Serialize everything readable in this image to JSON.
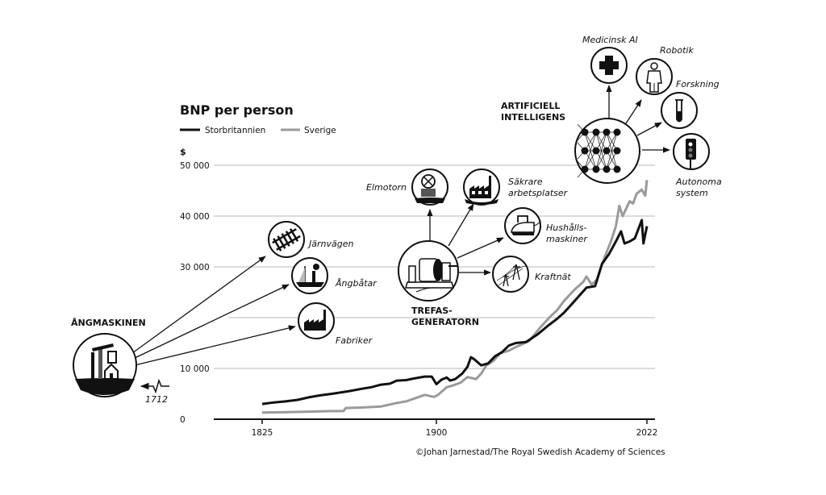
{
  "chart_data": {
    "type": "line",
    "title": "BNP per person",
    "ylabel": "$",
    "ylim": [
      0,
      50000
    ],
    "yticks": [
      {
        "value": 0,
        "label": "0"
      },
      {
        "value": 10000,
        "label": "10 000"
      },
      {
        "value": 20000,
        "label": ""
      },
      {
        "value": 30000,
        "label": "30 000"
      },
      {
        "value": 40000,
        "label": "40 000"
      },
      {
        "value": 50000,
        "label": "50 000"
      }
    ],
    "xticks": [
      {
        "value": 1825,
        "label": "1825"
      },
      {
        "value": 1900,
        "label": "1900"
      },
      {
        "value": 2022,
        "label": "2022"
      }
    ],
    "grid": true,
    "legend_placement": "top-left",
    "series": [
      {
        "name": "Storbritannien",
        "color": "#111111",
        "points": [
          [
            1825,
            3000
          ],
          [
            1830,
            3300
          ],
          [
            1835,
            3500
          ],
          [
            1840,
            3800
          ],
          [
            1845,
            4300
          ],
          [
            1850,
            4700
          ],
          [
            1855,
            5000
          ],
          [
            1862,
            5500
          ],
          [
            1868,
            6000
          ],
          [
            1872,
            6300
          ],
          [
            1876,
            6800
          ],
          [
            1880,
            7000
          ],
          [
            1883,
            7600
          ],
          [
            1887,
            7700
          ],
          [
            1890,
            8000
          ],
          [
            1895,
            8400
          ],
          [
            1898,
            8400
          ],
          [
            1900,
            6900
          ],
          [
            1903,
            7800
          ],
          [
            1906,
            8200
          ],
          [
            1908,
            7600
          ],
          [
            1911,
            7900
          ],
          [
            1915,
            9000
          ],
          [
            1918,
            10300
          ],
          [
            1920,
            12200
          ],
          [
            1922,
            11800
          ],
          [
            1926,
            10600
          ],
          [
            1930,
            11000
          ],
          [
            1934,
            12400
          ],
          [
            1938,
            13200
          ],
          [
            1942,
            14500
          ],
          [
            1946,
            15000
          ],
          [
            1952,
            15200
          ],
          [
            1959,
            16800
          ],
          [
            1965,
            18500
          ],
          [
            1970,
            19800
          ],
          [
            1974,
            21000
          ],
          [
            1978,
            22500
          ],
          [
            1982,
            24000
          ],
          [
            1987,
            25900
          ],
          [
            1992,
            26200
          ],
          [
            1996,
            30600
          ],
          [
            2000,
            32500
          ],
          [
            2004,
            35000
          ],
          [
            2007,
            37000
          ],
          [
            2009,
            34600
          ],
          [
            2012,
            35000
          ],
          [
            2015,
            35600
          ],
          [
            2019,
            39200
          ],
          [
            2020,
            34600
          ],
          [
            2022,
            38000
          ]
        ]
      },
      {
        "name": "Sverige",
        "color": "#9a9a9a",
        "points": [
          [
            1825,
            1300
          ],
          [
            1835,
            1400
          ],
          [
            1845,
            1500
          ],
          [
            1855,
            1600
          ],
          [
            1860,
            1600
          ],
          [
            1861,
            2200
          ],
          [
            1868,
            2300
          ],
          [
            1876,
            2500
          ],
          [
            1883,
            3200
          ],
          [
            1887,
            3500
          ],
          [
            1890,
            4000
          ],
          [
            1895,
            4800
          ],
          [
            1899,
            4400
          ],
          [
            1901,
            4800
          ],
          [
            1906,
            6300
          ],
          [
            1910,
            6700
          ],
          [
            1914,
            7200
          ],
          [
            1918,
            8300
          ],
          [
            1923,
            7900
          ],
          [
            1926,
            9000
          ],
          [
            1929,
            10600
          ],
          [
            1933,
            11500
          ],
          [
            1937,
            13000
          ],
          [
            1942,
            13500
          ],
          [
            1946,
            14200
          ],
          [
            1950,
            14800
          ],
          [
            1954,
            15500
          ],
          [
            1960,
            18000
          ],
          [
            1966,
            20200
          ],
          [
            1970,
            21500
          ],
          [
            1974,
            23300
          ],
          [
            1980,
            25500
          ],
          [
            1985,
            27000
          ],
          [
            1987,
            28100
          ],
          [
            1990,
            26500
          ],
          [
            1993,
            27500
          ],
          [
            1996,
            30600
          ],
          [
            2001,
            34900
          ],
          [
            2004,
            38000
          ],
          [
            2006,
            42000
          ],
          [
            2008,
            40000
          ],
          [
            2010,
            41500
          ],
          [
            2012,
            42900
          ],
          [
            2014,
            42500
          ],
          [
            2016,
            44400
          ],
          [
            2019,
            45200
          ],
          [
            2021,
            44000
          ],
          [
            2022,
            47100
          ]
        ]
      }
    ]
  },
  "annotations": {
    "steam": {
      "title": "ÅNGMASKINEN",
      "year": "1712",
      "items": [
        "Järnvägen",
        "Ångbåtar",
        "Fabriker"
      ]
    },
    "generator": {
      "title_line1": "TREFAS-",
      "title_line2": "GENERATORN",
      "items": [
        "Elmotorn",
        "Säkrare",
        "arbetsplatser",
        "Hushålls-",
        "maskiner",
        "Kraftnät"
      ]
    },
    "ai": {
      "title_line1": "ARTIFICIELL",
      "title_line2": "INTELLIGENS",
      "items": [
        "Medicinsk AI",
        "Robotik",
        "Forskning",
        "Autonoma",
        "system"
      ]
    }
  },
  "credit": "©Johan Jarnestad/The Royal Swedish Academy of Sciences"
}
